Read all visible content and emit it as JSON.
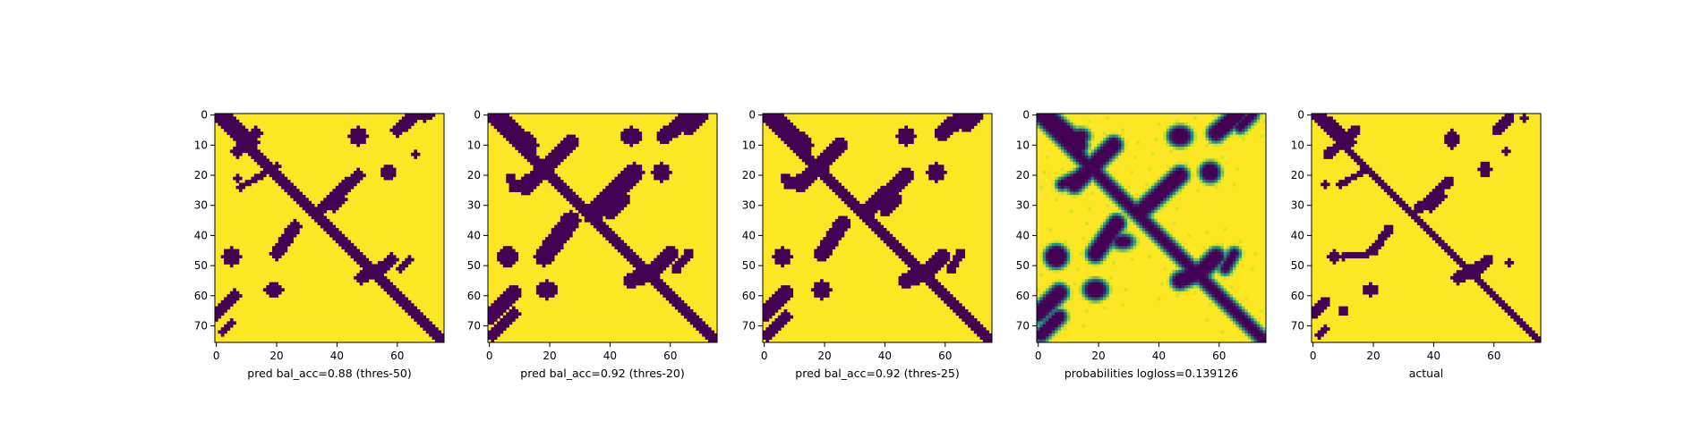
{
  "colors": {
    "contact": "#440154",
    "background": "#fde725",
    "mid_low": "#21918c",
    "mid_high": "#b5de2b"
  },
  "chart_data": [
    {
      "type": "heatmap",
      "title": "",
      "xlabel": "pred bal_acc=0.88 (thres-50)",
      "xlim": [
        0,
        75
      ],
      "ylim": [
        75,
        0
      ],
      "xticks": [
        0,
        20,
        40,
        60
      ],
      "yticks": [
        0,
        10,
        20,
        30,
        40,
        50,
        60,
        70
      ],
      "colormap": "viridis",
      "diagonal_band_width": 3,
      "segments": [
        {
          "x0": 3,
          "y0": 0,
          "x1": 12,
          "y1": 9,
          "w": 2
        },
        {
          "x0": 13,
          "y0": 6,
          "x1": 7,
          "y1": 12,
          "w": 2
        },
        {
          "x0": 8,
          "y0": 24,
          "x1": 20,
          "y1": 17,
          "w": 1
        },
        {
          "x0": 34,
          "y0": 32,
          "x1": 47,
          "y1": 20,
          "w": 2
        },
        {
          "x0": 39,
          "y0": 31,
          "x1": 42,
          "y1": 28,
          "w": 1
        },
        {
          "x0": 20,
          "y0": 46,
          "x1": 26,
          "y1": 37,
          "w": 2
        },
        {
          "x0": 48,
          "y0": 54,
          "x1": 54,
          "y1": 51,
          "w": 2
        },
        {
          "x0": 58,
          "y0": 48,
          "x1": 54,
          "y1": 52,
          "w": 2
        },
        {
          "x0": 64,
          "y0": 48,
          "x1": 61,
          "y1": 51,
          "w": 1
        },
        {
          "x0": 60,
          "y0": 5,
          "x1": 66,
          "y1": 0,
          "w": 2
        },
        {
          "x0": 69,
          "y0": 1,
          "x1": 71,
          "y1": 0,
          "w": 1
        },
        {
          "x0": 0,
          "y0": 66,
          "x1": 6,
          "y1": 60,
          "w": 2
        },
        {
          "x0": 2,
          "y0": 72,
          "x1": 5,
          "y1": 69,
          "w": 1
        }
      ],
      "blobs": [
        {
          "cx": 47,
          "cy": 7,
          "rx": 3,
          "ry": 3
        },
        {
          "cx": 57,
          "cy": 19,
          "rx": 2.5,
          "ry": 2.5
        },
        {
          "cx": 5,
          "cy": 47,
          "rx": 3,
          "ry": 3
        },
        {
          "cx": 19,
          "cy": 58,
          "rx": 3,
          "ry": 2.5
        },
        {
          "cx": 66,
          "cy": 13,
          "rx": 1,
          "ry": 1
        },
        {
          "cx": 7,
          "cy": 21,
          "rx": 1,
          "ry": 1
        }
      ],
      "intensity": 1,
      "soft": false
    },
    {
      "type": "heatmap",
      "title": "",
      "xlabel": "pred bal_acc=0.92 (thres-20)",
      "xlim": [
        0,
        75
      ],
      "ylim": [
        75,
        0
      ],
      "xticks": [
        0,
        20,
        40,
        60
      ],
      "yticks": [
        0,
        10,
        20,
        30,
        40,
        50,
        60,
        70
      ],
      "colormap": "viridis",
      "diagonal_band_width": 4,
      "segments": [
        {
          "x0": 2,
          "y0": 0,
          "x1": 13,
          "y1": 10,
          "w": 3
        },
        {
          "x0": 27,
          "y0": 9,
          "x1": 12,
          "y1": 24,
          "w": 2.5
        },
        {
          "x0": 8,
          "y0": 24,
          "x1": 20,
          "y1": 17,
          "w": 1.5
        },
        {
          "x0": 34,
          "y0": 33,
          "x1": 48,
          "y1": 19,
          "w": 3
        },
        {
          "x0": 40,
          "y0": 33,
          "x1": 45,
          "y1": 28,
          "w": 1.5
        },
        {
          "x0": 18,
          "y0": 47,
          "x1": 27,
          "y1": 35,
          "w": 3
        },
        {
          "x0": 47,
          "y0": 55,
          "x1": 54,
          "y1": 52,
          "w": 2.5
        },
        {
          "x0": 60,
          "y0": 46,
          "x1": 53,
          "y1": 53,
          "w": 2.5
        },
        {
          "x0": 66,
          "y0": 46,
          "x1": 62,
          "y1": 51,
          "w": 1.5
        },
        {
          "x0": 58,
          "y0": 7,
          "x1": 67,
          "y1": 0,
          "w": 2.5
        },
        {
          "x0": 66,
          "y0": 5,
          "x1": 71,
          "y1": 0,
          "w": 1.5
        },
        {
          "x0": 0,
          "y0": 67,
          "x1": 8,
          "y1": 59,
          "w": 2.5
        },
        {
          "x0": 1,
          "y0": 73,
          "x1": 8,
          "y1": 66,
          "w": 2
        }
      ],
      "blobs": [
        {
          "cx": 47,
          "cy": 7,
          "rx": 3.5,
          "ry": 3
        },
        {
          "cx": 57,
          "cy": 19,
          "rx": 3,
          "ry": 3
        },
        {
          "cx": 6,
          "cy": 47,
          "rx": 3.5,
          "ry": 3.5
        },
        {
          "cx": 19,
          "cy": 58,
          "rx": 3.5,
          "ry": 3
        },
        {
          "cx": 7,
          "cy": 21,
          "rx": 1.5,
          "ry": 1.5
        }
      ],
      "intensity": 1,
      "soft": false
    },
    {
      "type": "heatmap",
      "title": "",
      "xlabel": "pred bal_acc=0.92 (thres-25)",
      "xlim": [
        0,
        75
      ],
      "ylim": [
        75,
        0
      ],
      "xticks": [
        0,
        20,
        40,
        60
      ],
      "yticks": [
        0,
        10,
        20,
        30,
        40,
        50,
        60,
        70
      ],
      "colormap": "viridis",
      "diagonal_band_width": 3.5,
      "segments": [
        {
          "x0": 2,
          "y0": 0,
          "x1": 13,
          "y1": 10,
          "w": 3
        },
        {
          "x0": 25,
          "y0": 10,
          "x1": 12,
          "y1": 23,
          "w": 2.5
        },
        {
          "x0": 8,
          "y0": 23,
          "x1": 20,
          "y1": 17,
          "w": 1.5
        },
        {
          "x0": 34,
          "y0": 32,
          "x1": 47,
          "y1": 20,
          "w": 2.5
        },
        {
          "x0": 40,
          "y0": 32,
          "x1": 44,
          "y1": 28,
          "w": 1.5
        },
        {
          "x0": 19,
          "y0": 46,
          "x1": 26,
          "y1": 36,
          "w": 2.5
        },
        {
          "x0": 47,
          "y0": 55,
          "x1": 54,
          "y1": 52,
          "w": 2.5
        },
        {
          "x0": 59,
          "y0": 47,
          "x1": 54,
          "y1": 52,
          "w": 2.5
        },
        {
          "x0": 65,
          "y0": 46,
          "x1": 62,
          "y1": 51,
          "w": 1.5
        },
        {
          "x0": 59,
          "y0": 6,
          "x1": 66,
          "y1": 0,
          "w": 2.5
        },
        {
          "x0": 67,
          "y0": 4,
          "x1": 71,
          "y1": 0,
          "w": 1.5
        },
        {
          "x0": 0,
          "y0": 66,
          "x1": 7,
          "y1": 59,
          "w": 2.5
        },
        {
          "x0": 1,
          "y0": 73,
          "x1": 7,
          "y1": 67,
          "w": 2
        }
      ],
      "blobs": [
        {
          "cx": 47,
          "cy": 7,
          "rx": 3,
          "ry": 3
        },
        {
          "cx": 57,
          "cy": 19,
          "rx": 3,
          "ry": 3
        },
        {
          "cx": 6,
          "cy": 47,
          "rx": 3,
          "ry": 3
        },
        {
          "cx": 19,
          "cy": 58,
          "rx": 3,
          "ry": 3
        },
        {
          "cx": 7,
          "cy": 21,
          "rx": 1.5,
          "ry": 1.5
        }
      ],
      "intensity": 1,
      "soft": false
    },
    {
      "type": "heatmap",
      "title": "",
      "xlabel": "probabilities logloss=0.139126",
      "xlim": [
        0,
        75
      ],
      "ylim": [
        75,
        0
      ],
      "xticks": [
        0,
        20,
        40,
        60
      ],
      "yticks": [
        0,
        10,
        20,
        30,
        40,
        50,
        60,
        70
      ],
      "colormap": "viridis",
      "diagonal_band_width": 3.5,
      "segments": [
        {
          "x0": 2,
          "y0": 0,
          "x1": 13,
          "y1": 10,
          "w": 3
        },
        {
          "x0": 25,
          "y0": 10,
          "x1": 12,
          "y1": 23,
          "w": 2.5
        },
        {
          "x0": 8,
          "y0": 23,
          "x1": 20,
          "y1": 17,
          "w": 1.5
        },
        {
          "x0": 34,
          "y0": 32,
          "x1": 47,
          "y1": 20,
          "w": 2.5
        },
        {
          "x0": 19,
          "y0": 46,
          "x1": 26,
          "y1": 36,
          "w": 2.5
        },
        {
          "x0": 47,
          "y0": 55,
          "x1": 54,
          "y1": 52,
          "w": 2.5
        },
        {
          "x0": 59,
          "y0": 47,
          "x1": 54,
          "y1": 52,
          "w": 2.5
        },
        {
          "x0": 65,
          "y0": 46,
          "x1": 62,
          "y1": 51,
          "w": 1.5
        },
        {
          "x0": 59,
          "y0": 6,
          "x1": 66,
          "y1": 0,
          "w": 2.5
        },
        {
          "x0": 67,
          "y0": 4,
          "x1": 71,
          "y1": 0,
          "w": 1.5
        },
        {
          "x0": 0,
          "y0": 66,
          "x1": 7,
          "y1": 59,
          "w": 2.5
        },
        {
          "x0": 1,
          "y0": 73,
          "x1": 7,
          "y1": 67,
          "w": 2
        }
      ],
      "blobs": [
        {
          "cx": 47,
          "cy": 7,
          "rx": 3.5,
          "ry": 3
        },
        {
          "cx": 57,
          "cy": 19,
          "rx": 3,
          "ry": 3
        },
        {
          "cx": 6,
          "cy": 47,
          "rx": 3.5,
          "ry": 3.5
        },
        {
          "cx": 19,
          "cy": 58,
          "rx": 3.5,
          "ry": 3
        },
        {
          "cx": 14,
          "cy": 7,
          "rx": 2.5,
          "ry": 2
        },
        {
          "cx": 28,
          "cy": 42,
          "rx": 3,
          "ry": 2
        }
      ],
      "intensity": 0.8,
      "soft": true
    },
    {
      "type": "heatmap",
      "title": "",
      "xlabel": "actual",
      "xlim": [
        0,
        75
      ],
      "ylim": [
        75,
        0
      ],
      "xticks": [
        0,
        20,
        40,
        60
      ],
      "yticks": [
        0,
        10,
        20,
        30,
        40,
        50,
        60,
        70
      ],
      "colormap": "viridis",
      "diagonal_band_width": 2.5,
      "segments": [
        {
          "x0": 3,
          "y0": 1,
          "x1": 12,
          "y1": 9,
          "w": 2
        },
        {
          "x0": 14,
          "y0": 5,
          "x1": 5,
          "y1": 13,
          "w": 1.5
        },
        {
          "x0": 9,
          "y0": 23,
          "x1": 18,
          "y1": 18,
          "w": 1
        },
        {
          "x0": 35,
          "y0": 31,
          "x1": 45,
          "y1": 22,
          "w": 1.5
        },
        {
          "x0": 39,
          "y0": 31,
          "x1": 43,
          "y1": 27,
          "w": 1
        },
        {
          "x0": 20,
          "y0": 45,
          "x1": 25,
          "y1": 38,
          "w": 1.5
        },
        {
          "x0": 10,
          "y0": 47,
          "x1": 18,
          "y1": 46,
          "w": 1
        },
        {
          "x0": 48,
          "y0": 54,
          "x1": 54,
          "y1": 51,
          "w": 2
        },
        {
          "x0": 58,
          "y0": 48,
          "x1": 54,
          "y1": 52,
          "w": 1.5
        },
        {
          "x0": 61,
          "y0": 5,
          "x1": 65,
          "y1": 1,
          "w": 1.5
        },
        {
          "x0": 0,
          "y0": 66,
          "x1": 4,
          "y1": 62,
          "w": 1.5
        },
        {
          "x0": 2,
          "y0": 73,
          "x1": 4,
          "y1": 71,
          "w": 1
        }
      ],
      "blobs": [
        {
          "cx": 46,
          "cy": 8,
          "rx": 2.5,
          "ry": 3
        },
        {
          "cx": 57,
          "cy": 18,
          "rx": 2,
          "ry": 2.5
        },
        {
          "cx": 7,
          "cy": 47,
          "rx": 2,
          "ry": 2
        },
        {
          "cx": 19,
          "cy": 58,
          "rx": 2.5,
          "ry": 2
        },
        {
          "cx": 10,
          "cy": 65,
          "rx": 1.5,
          "ry": 1.5
        },
        {
          "cx": 64,
          "cy": 12,
          "rx": 1,
          "ry": 1
        },
        {
          "cx": 70,
          "cy": 1,
          "rx": 1,
          "ry": 1
        },
        {
          "cx": 65,
          "cy": 49,
          "rx": 1,
          "ry": 1
        },
        {
          "cx": 4,
          "cy": 23,
          "rx": 1,
          "ry": 1
        }
      ],
      "intensity": 1,
      "soft": false
    }
  ]
}
